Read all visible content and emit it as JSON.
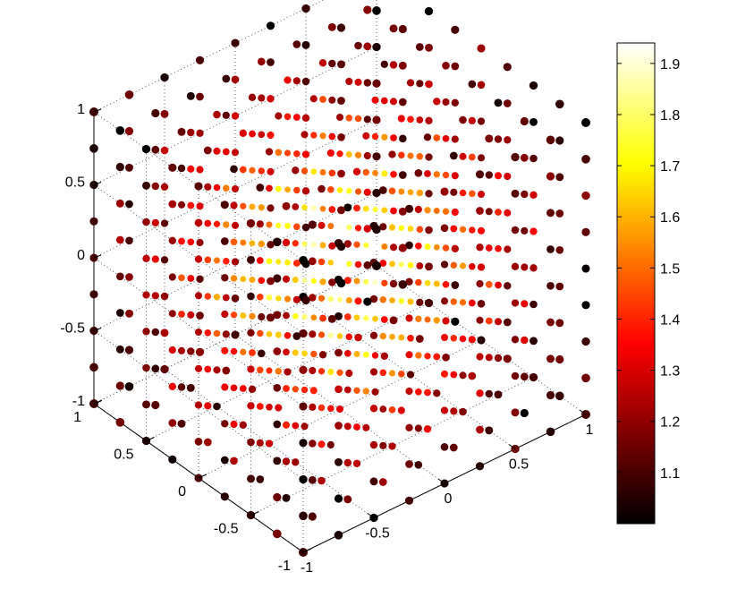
{
  "chart_data": {
    "type": "scatter",
    "projection": "3d",
    "colormap": "hot",
    "grid": true,
    "title": "",
    "xlabel": "",
    "ylabel": "",
    "zlabel": "",
    "xlim": [
      -1,
      1
    ],
    "ylim": [
      -1,
      1
    ],
    "zlim": [
      -1,
      1
    ],
    "lattice_values": [
      -1,
      -0.75,
      -0.5,
      -0.25,
      0,
      0.25,
      0.5,
      0.75,
      1
    ],
    "point_description": "9x9x9 lattice of points on [-1,1]^3; marker size and color encode distance from the origin",
    "x_ticks": [
      {
        "value": -1,
        "label": "-1"
      },
      {
        "value": -0.5,
        "label": "-0.5"
      },
      {
        "value": 0,
        "label": "0"
      },
      {
        "value": 0.5,
        "label": "0.5"
      },
      {
        "value": 1,
        "label": "1"
      }
    ],
    "y_ticks": [
      {
        "value": -1,
        "label": "-1"
      },
      {
        "value": -0.5,
        "label": "-0.5"
      },
      {
        "value": 0,
        "label": "0"
      },
      {
        "value": 0.5,
        "label": "0.5"
      },
      {
        "value": 1,
        "label": "1"
      }
    ],
    "z_ticks": [
      {
        "value": -1,
        "label": "-1"
      },
      {
        "value": -0.5,
        "label": "-0.5"
      },
      {
        "value": 0,
        "label": "0"
      },
      {
        "value": 0.5,
        "label": "0.5"
      },
      {
        "value": 1,
        "label": "1"
      }
    ],
    "colorbar": {
      "placement": "right",
      "range": [
        1.0,
        1.94
      ],
      "ticks": [
        {
          "value": 1.1,
          "label": "1.1"
        },
        {
          "value": 1.2,
          "label": "1.2"
        },
        {
          "value": 1.3,
          "label": "1.3"
        },
        {
          "value": 1.4,
          "label": "1.4"
        },
        {
          "value": 1.5,
          "label": "1.5"
        },
        {
          "value": 1.6,
          "label": "1.6"
        },
        {
          "value": 1.7,
          "label": "1.7"
        },
        {
          "value": 1.8,
          "label": "1.8"
        },
        {
          "value": 1.9,
          "label": "1.9"
        }
      ]
    }
  }
}
